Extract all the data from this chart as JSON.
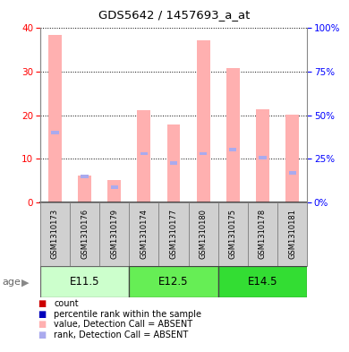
{
  "title": "GDS5642 / 1457693_a_at",
  "samples": [
    "GSM1310173",
    "GSM1310176",
    "GSM1310179",
    "GSM1310174",
    "GSM1310177",
    "GSM1310180",
    "GSM1310175",
    "GSM1310178",
    "GSM1310181"
  ],
  "groups": [
    {
      "label": "E11.5",
      "samples": [
        0,
        1,
        2
      ]
    },
    {
      "label": "E12.5",
      "samples": [
        3,
        4,
        5
      ]
    },
    {
      "label": "E14.5",
      "samples": [
        6,
        7,
        8
      ]
    }
  ],
  "value_absent": [
    38.5,
    6.1,
    5.2,
    21.2,
    17.8,
    37.2,
    30.8,
    21.3,
    20.2
  ],
  "rank_absent_val": [
    16.0,
    6.0,
    3.5,
    11.2,
    9.0,
    11.2,
    12.2,
    10.2,
    6.8
  ],
  "ylim_left": [
    0,
    40
  ],
  "ylim_right": [
    0,
    100
  ],
  "yticks_left": [
    0,
    10,
    20,
    30,
    40
  ],
  "yticks_right": [
    0,
    25,
    50,
    75,
    100
  ],
  "color_count": "#cc0000",
  "color_percentile": "#0000bb",
  "color_value_absent": "#ffb0b0",
  "color_rank_absent": "#aaaaee",
  "group_colors": [
    "#ccffcc",
    "#66ee55",
    "#33dd33"
  ],
  "group_border_colors": [
    "#666666",
    "#444444",
    "#444444"
  ],
  "sample_bg_color": "#d0d0d0",
  "sample_border_color": "#888888"
}
